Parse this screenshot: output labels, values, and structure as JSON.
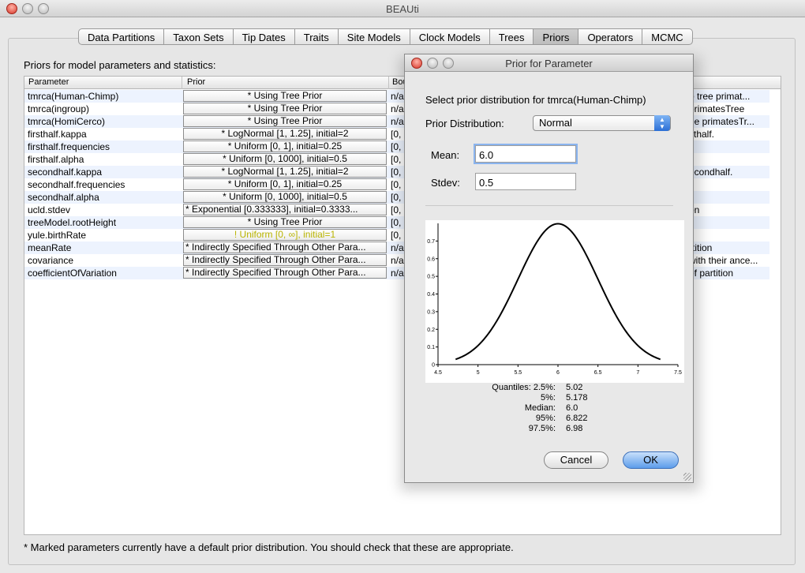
{
  "window": {
    "title": "BEAUti"
  },
  "tabs": [
    {
      "label": "Data Partitions"
    },
    {
      "label": "Taxon Sets"
    },
    {
      "label": "Tip Dates"
    },
    {
      "label": "Traits"
    },
    {
      "label": "Site Models"
    },
    {
      "label": "Clock Models"
    },
    {
      "label": "Trees"
    },
    {
      "label": "Priors",
      "active": true
    },
    {
      "label": "Operators"
    },
    {
      "label": "MCMC"
    }
  ],
  "panel": {
    "heading": "Priors for model parameters and statistics:"
  },
  "table": {
    "columns": {
      "parameter": "Parameter",
      "prior": "Prior",
      "bound": "Bou"
    },
    "rows": [
      {
        "parameter": "tmrca(Human-Chimp)",
        "prior": "* Using Tree Prior",
        "bound": "n/a",
        "description": "o tree primat..."
      },
      {
        "parameter": "tmrca(ingroup)",
        "prior": "* Using Tree Prior",
        "bound": "n/a",
        "description": "primatesTree"
      },
      {
        "parameter": "tmrca(HomiCerco)",
        "prior": "* Using Tree Prior",
        "bound": "n/a",
        "description": "ee primatesTr..."
      },
      {
        "parameter": "firsthalf.kappa",
        "prior": "* LogNormal [1, 1.25], initial=2",
        "bound": "[0,",
        "description": "sthalf."
      },
      {
        "parameter": "firsthalf.frequencies",
        "prior": "* Uniform [0, 1], initial=0.25",
        "bound": "[0,",
        "description": ""
      },
      {
        "parameter": "firsthalf.alpha",
        "prior": "* Uniform [0, 1000], initial=0.5",
        "bound": "[0,",
        "description": ""
      },
      {
        "parameter": "secondhalf.kappa",
        "prior": "* LogNormal [1, 1.25], initial=2",
        "bound": "[0,",
        "description": "econdhalf."
      },
      {
        "parameter": "secondhalf.frequencies",
        "prior": "* Uniform [0, 1], initial=0.25",
        "bound": "[0,",
        "description": ""
      },
      {
        "parameter": "secondhalf.alpha",
        "prior": "* Uniform [0, 1000], initial=0.5",
        "bound": "[0,",
        "description": ""
      },
      {
        "parameter": "ucld.stdev",
        "prior": "* Exponential [0.333333], initial=0.3333...",
        "bound": "[0,",
        "description": "on"
      },
      {
        "parameter": "treeModel.rootHeight",
        "prior": "* Using Tree Prior",
        "bound": "[0,",
        "description": ""
      },
      {
        "parameter": "yule.birthRate",
        "prior": "! Uniform [0, ∞], initial=1",
        "bound": "[0,",
        "description": "",
        "warning": true
      },
      {
        "parameter": "meanRate",
        "prior": "* Indirectly Specified Through Other Para...",
        "bound": "n/a",
        "description": "rtition"
      },
      {
        "parameter": "covariance",
        "prior": "* Indirectly Specified Through Other Para...",
        "bound": "n/a",
        "description": "with their ance..."
      },
      {
        "parameter": "coefficientOfVariation",
        "prior": "* Indirectly Specified Through Other Para...",
        "bound": "n/a",
        "description": "of partition"
      }
    ]
  },
  "footer": {
    "note": "* Marked parameters currently have a default prior distribution. You should check that these are appropriate."
  },
  "dialog": {
    "title": "Prior for Parameter",
    "prompt": "Select prior distribution for tmrca(Human-Chimp)",
    "distribution_label": "Prior Distribution:",
    "distribution_value": "Normal",
    "mean_label": "Mean:",
    "mean_value": "6.0",
    "stdev_label": "Stdev:",
    "stdev_value": "0.5",
    "quantiles": [
      {
        "label": "Quantiles: 2.5%:",
        "value": "5.02"
      },
      {
        "label": "5%:",
        "value": "5.178"
      },
      {
        "label": "Median:",
        "value": "6.0"
      },
      {
        "label": "95%:",
        "value": "6.822"
      },
      {
        "label": "97.5%:",
        "value": "6.98"
      }
    ],
    "cancel_label": "Cancel",
    "ok_label": "OK"
  },
  "chart_data": {
    "type": "line",
    "title": "",
    "xlabel": "",
    "ylabel": "",
    "xlim": [
      4.5,
      7.5
    ],
    "ylim": [
      0,
      0.8
    ],
    "x_ticks": [
      "4.5",
      "5",
      "5.5",
      "6",
      "6.5",
      "7",
      "7.5"
    ],
    "y_ticks": [
      "0",
      "0.1",
      "0.2",
      "0.3",
      "0.4",
      "0.5",
      "0.6",
      "0.7"
    ],
    "series": [
      {
        "distribution": "normal",
        "mean": 6.0,
        "stdev": 0.5,
        "x_range": [
          4.72,
          7.28
        ]
      }
    ]
  }
}
